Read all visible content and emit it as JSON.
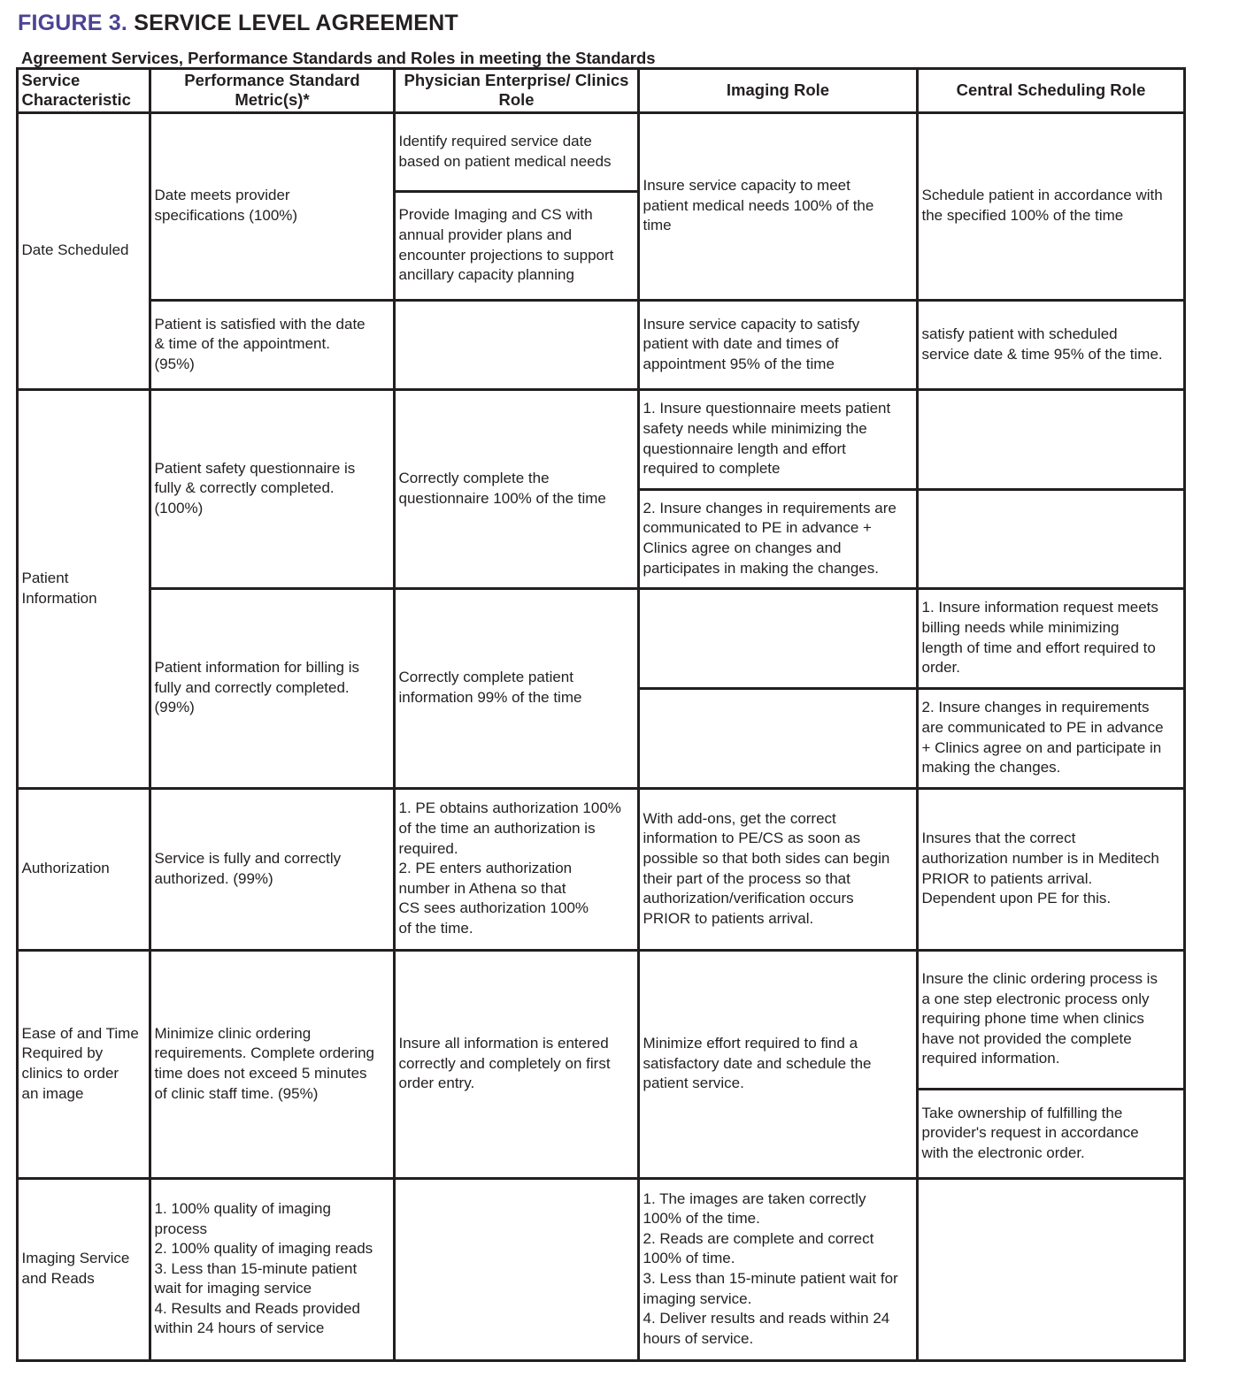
{
  "title": {
    "figure": "FIGURE 3.",
    "text": " SERVICE LEVEL AGREEMENT",
    "color": "#4b4393"
  },
  "subtitle": "Agreement Services, Performance Standards and Roles in meeting the Standards",
  "headers": [
    "Service\nCharacteristic",
    "Performance Standard\nMetric(s)*",
    "Physician Enterprise/ Clinics\nRole",
    "Imaging Role",
    "Central Scheduling  Role"
  ],
  "rows": {
    "date_scheduled": {
      "label": "Date Scheduled",
      "r1": {
        "metric": "Date meets provider\nspecifications (100%)",
        "pe_a": "Identify required service date\nbased on patient medical needs",
        "pe_b": "Provide Imaging and CS with\nannual provider plans and\nencounter projections to support\nancillary capacity planning",
        "imaging": "Insure service capacity to meet\npatient medical needs 100% of the\ntime",
        "cs": "Schedule patient in accordance with\nthe  specified 100% of the time"
      },
      "r2": {
        "metric": "Patient is satisfied with the date\n& time of the appointment.\n(95%)",
        "pe": "",
        "imaging": "Insure service capacity to satisfy\npatient with date and times of\nappointment   95% of the time",
        "cs": "satisfy patient with scheduled\nservice date & time 95% of the time."
      }
    },
    "patient_information": {
      "label": "Patient\nInformation",
      "r1": {
        "metric": "Patient safety questionnaire is\nfully & correctly completed.\n(100%)",
        "pe": "Correctly complete the\nquestionnaire 100% of the time",
        "imaging_a": "1. Insure questionnaire meets patient\nsafety needs while minimizing the\nquestionnaire length and effort\nrequired to complete",
        "imaging_b": "2. Insure changes in requirements are\ncommunicated to PE in advance +\nClinics agree on changes and\nparticipates in making  the changes.",
        "cs_a": "",
        "cs_b": ""
      },
      "r2": {
        "metric": "Patient information for billing is\nfully and correctly completed.\n(99%)",
        "pe": "Correctly complete patient\ninformation 99% of the time",
        "imaging_a": "",
        "imaging_b": "",
        "cs_a": "1. Insure information request meets\nbilling needs while minimizing\nlength of time and effort required to\norder.",
        "cs_b": "2. Insure changes in requirements\nare communicated to PE in advance\n+ Clinics agree on and participate in\nmaking the changes."
      }
    },
    "authorization": {
      "label": "Authorization",
      "metric": "Service is fully and correctly\nauthorized. (99%)",
      "pe": "1. PE obtains authorization  100%\nof the time an authorization is\nrequired.\n2. PE enters authorization\nnumber in Athena so that\nCS sees authorization 100%\nof the time.",
      "imaging": "With add-ons, get the correct\ninformation to PE/CS as soon as\npossible so that both sides can begin\ntheir part of the process so that\nauthorization/verification occurs\nPRIOR to patients arrival.",
      "cs": "Insures that the correct\nauthorization number is in Meditech\nPRIOR to patients arrival.\nDependent upon PE for this."
    },
    "ease_of_ordering": {
      "label": "Ease of and Time\nRequired by\nclinics to order\nan image",
      "metric": "Minimize clinic ordering\nrequirements. Complete ordering\ntime does not exceed 5 minutes\nof clinic staff time.  (95%)",
      "pe": "Insure all information is entered\ncorrectly and completely on first\norder entry.",
      "imaging": "Minimize effort required to find a\nsatisfactory date and schedule the\npatient service.",
      "cs_a": "Insure the clinic ordering process is\na one step electronic process only\nrequiring phone time when clinics\nhave not provided the complete\nrequired information.",
      "cs_b": "Take ownership of fulfilling the\nprovider's request in accordance\nwith the electronic order."
    },
    "imaging_service": {
      "label": "Imaging Service\nand Reads",
      "metric": "1. 100% quality of imaging\nprocess\n2. 100% quality of imaging reads\n3. Less than 15-minute patient\nwait for imaging service\n4. Results and Reads provided\nwithin 24 hours of service",
      "pe": "",
      "imaging": "1. The images are taken correctly\n100% of the time.\n2. Reads are complete and correct\n100% of time.\n3. Less than 15-minute patient wait for\nimaging service.\n4. Deliver results and reads within 24\nhours of service.",
      "cs": ""
    }
  }
}
